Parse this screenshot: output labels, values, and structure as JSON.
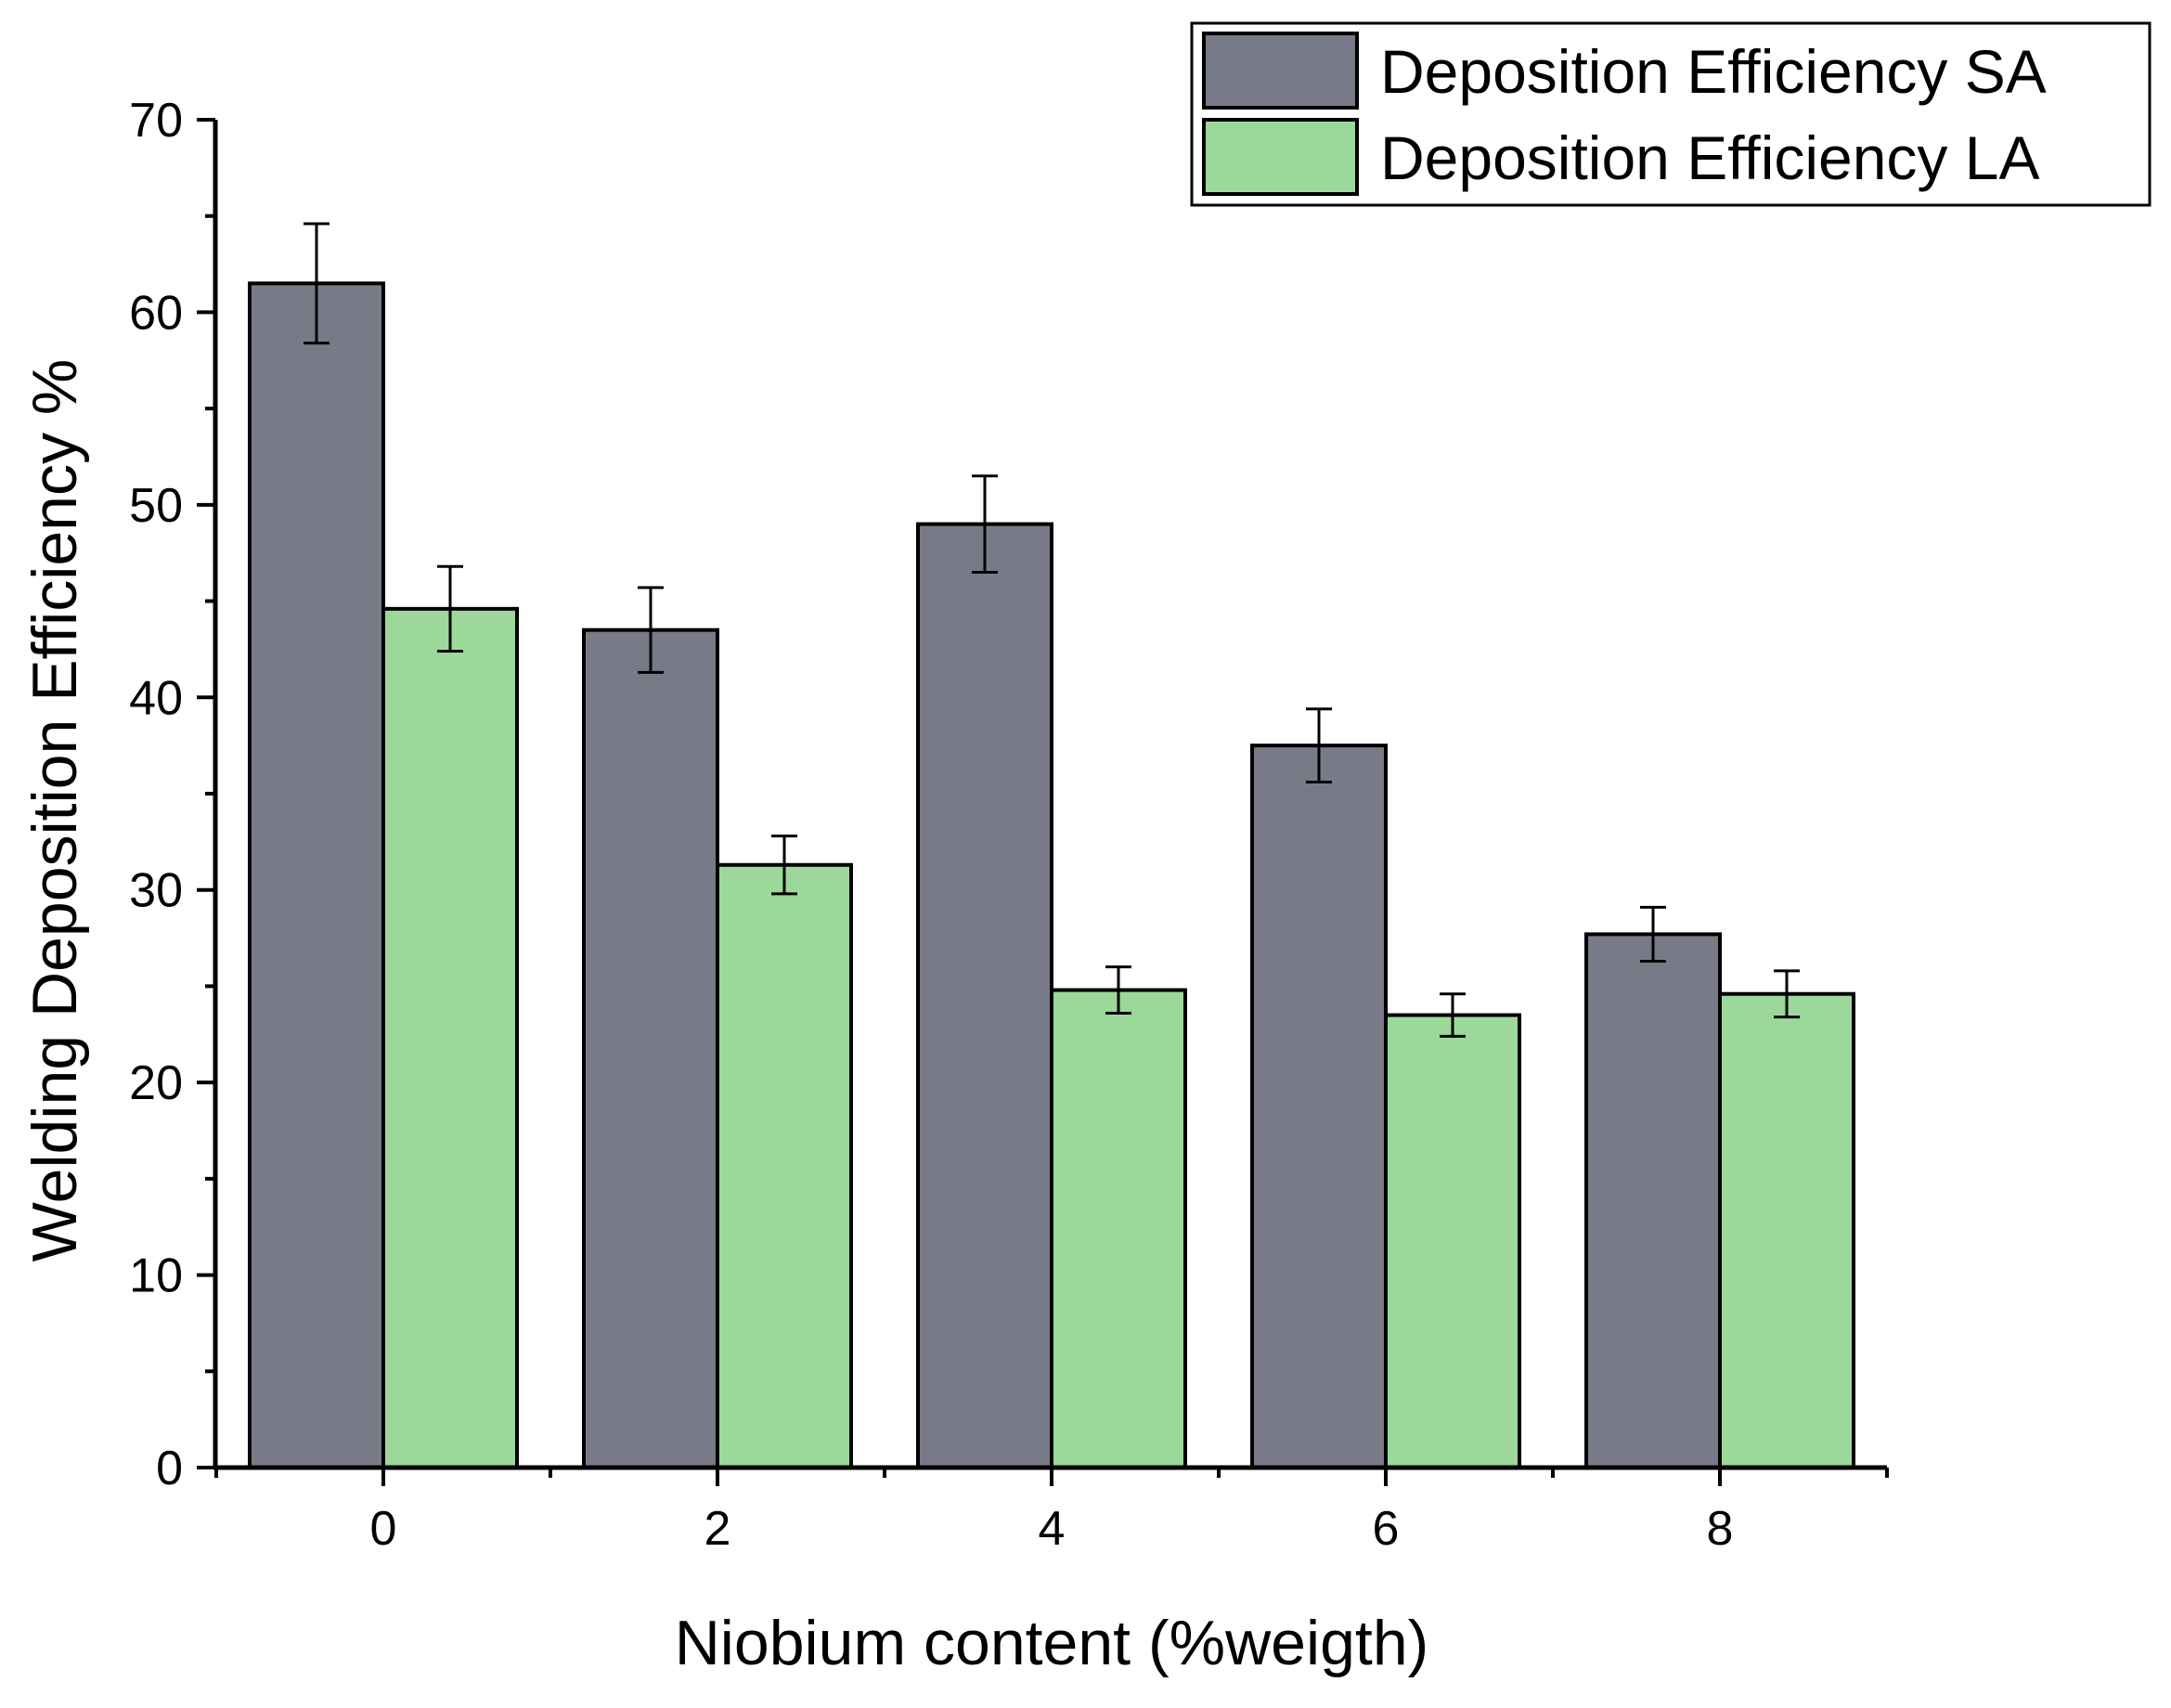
{
  "chart_data": {
    "type": "bar",
    "xlabel": "Niobium content (%weigth)",
    "ylabel": "Welding Deposition Efficiency %",
    "categories": [
      "0",
      "2",
      "4",
      "6",
      "8"
    ],
    "ylim": [
      0,
      70
    ],
    "yticks": [
      0,
      10,
      20,
      30,
      40,
      50,
      60,
      70
    ],
    "series": [
      {
        "name": "Deposition Efficiency SA",
        "color": "#787b87",
        "values": [
          61.5,
          43.5,
          49.0,
          37.5,
          27.7
        ],
        "errors": [
          3.1,
          2.2,
          2.5,
          1.9,
          1.4
        ]
      },
      {
        "name": "Deposition Efficiency LA",
        "color": "#9dd89b",
        "values": [
          44.6,
          31.3,
          24.8,
          23.5,
          24.6
        ],
        "errors": [
          2.2,
          1.5,
          1.2,
          1.1,
          1.2
        ]
      }
    ],
    "legend_position": "top-right",
    "grid": false
  }
}
